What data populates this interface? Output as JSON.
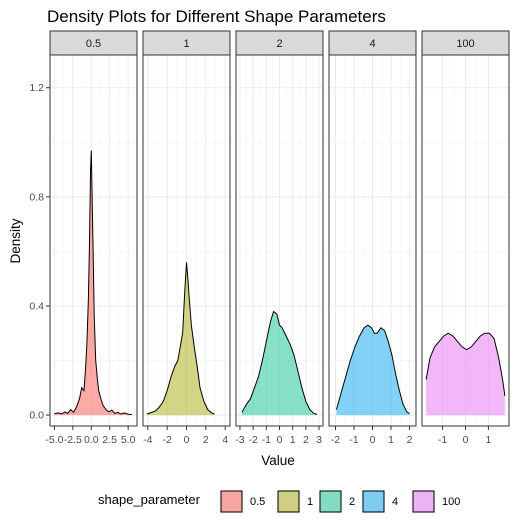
{
  "chart_data": {
    "type": "area",
    "title": "Density Plots for Different Shape Parameters",
    "xlabel": "Value",
    "ylabel": "Density",
    "ylim": [
      -0.04,
      1.32
    ],
    "yticks": [
      0.0,
      0.4,
      0.8,
      1.2
    ],
    "ytick_labels": [
      "0.0",
      "0.4",
      "0.8",
      "1.2"
    ],
    "grid": true,
    "legend": {
      "title": "shape_parameter",
      "position": "bottom"
    },
    "panels": [
      {
        "label": "0.5",
        "color": "#F8766D",
        "xlim": [
          -5.6,
          6.2
        ],
        "xticks": [
          -5.0,
          -2.5,
          0.0,
          2.5,
          5.0
        ],
        "xtick_labels": [
          "-5.0",
          "-2.5",
          "0.0",
          "2.5",
          "5.0"
        ],
        "x": [
          -5.0,
          -4.5,
          -4.0,
          -3.6,
          -3.2,
          -2.8,
          -2.4,
          -2.0,
          -1.6,
          -1.3,
          -1.0,
          -0.8,
          -0.6,
          -0.4,
          -0.25,
          -0.1,
          0.0,
          0.1,
          0.25,
          0.4,
          0.6,
          0.8,
          1.0,
          1.3,
          1.6,
          2.0,
          2.4,
          2.8,
          3.2,
          3.6,
          4.0,
          4.5,
          5.0,
          5.5
        ],
        "y": [
          0.005,
          0.008,
          0.004,
          0.012,
          0.006,
          0.02,
          0.01,
          0.03,
          0.06,
          0.1,
          0.09,
          0.16,
          0.26,
          0.42,
          0.62,
          0.9,
          0.97,
          0.82,
          0.6,
          0.36,
          0.2,
          0.14,
          0.09,
          0.06,
          0.035,
          0.02,
          0.012,
          0.018,
          0.006,
          0.01,
          0.004,
          0.008,
          0.003,
          0.002
        ]
      },
      {
        "label": "1",
        "color": "#B9BA3C",
        "xlim": [
          -4.5,
          4.5
        ],
        "xticks": [
          -4,
          -2,
          0,
          2,
          4
        ],
        "xtick_labels": [
          "-4",
          "-2",
          "0",
          "2",
          "4"
        ],
        "x": [
          -4.1,
          -3.6,
          -3.2,
          -2.8,
          -2.4,
          -2.0,
          -1.6,
          -1.2,
          -0.9,
          -0.6,
          -0.4,
          -0.2,
          -0.1,
          0.0,
          0.1,
          0.3,
          0.5,
          0.8,
          1.1,
          1.4,
          1.8,
          2.2,
          2.6,
          2.9
        ],
        "y": [
          0.004,
          0.01,
          0.015,
          0.03,
          0.05,
          0.09,
          0.14,
          0.18,
          0.2,
          0.26,
          0.3,
          0.44,
          0.5,
          0.56,
          0.52,
          0.42,
          0.33,
          0.25,
          0.18,
          0.1,
          0.05,
          0.02,
          0.008,
          0.004
        ]
      },
      {
        "label": "2",
        "color": "#3CCFA6",
        "xlim": [
          -3.3,
          3.3
        ],
        "xticks": [
          -3,
          -2,
          -1,
          0,
          1,
          2,
          3
        ],
        "xtick_labels": [
          "-3",
          "-2",
          "-1",
          "0",
          "1",
          "2",
          "3"
        ],
        "x": [
          -2.85,
          -2.5,
          -2.2,
          -1.9,
          -1.6,
          -1.3,
          -1.0,
          -0.7,
          -0.45,
          -0.2,
          0.0,
          0.2,
          0.5,
          0.8,
          1.1,
          1.4,
          1.7,
          2.0,
          2.3,
          2.6,
          2.85
        ],
        "y": [
          0.01,
          0.04,
          0.06,
          0.1,
          0.14,
          0.2,
          0.27,
          0.34,
          0.38,
          0.37,
          0.33,
          0.32,
          0.29,
          0.26,
          0.22,
          0.16,
          0.1,
          0.05,
          0.02,
          0.006,
          0.003
        ]
      },
      {
        "label": "4",
        "color": "#35B7F4",
        "xlim": [
          -2.35,
          2.35
        ],
        "xticks": [
          -2,
          -1,
          0,
          1,
          2
        ],
        "xtick_labels": [
          "-2",
          "-1",
          "0",
          "1",
          "2"
        ],
        "x": [
          -1.95,
          -1.7,
          -1.45,
          -1.2,
          -0.95,
          -0.7,
          -0.45,
          -0.25,
          -0.05,
          0.1,
          0.25,
          0.45,
          0.65,
          0.85,
          1.05,
          1.25,
          1.45,
          1.65,
          1.85,
          2.0
        ],
        "y": [
          0.02,
          0.08,
          0.14,
          0.2,
          0.25,
          0.29,
          0.32,
          0.33,
          0.32,
          0.3,
          0.3,
          0.32,
          0.31,
          0.27,
          0.22,
          0.15,
          0.09,
          0.04,
          0.012,
          0.005
        ]
      },
      {
        "label": "100",
        "color": "#E98AF5",
        "xlim": [
          -1.9,
          1.9
        ],
        "xticks": [
          -1,
          0,
          1
        ],
        "xtick_labels": [
          "-1",
          "0",
          "1"
        ],
        "x": [
          -1.72,
          -1.55,
          -1.35,
          -1.15,
          -0.95,
          -0.75,
          -0.55,
          -0.35,
          -0.15,
          0.05,
          0.25,
          0.45,
          0.65,
          0.85,
          1.05,
          1.25,
          1.45,
          1.62,
          1.72
        ],
        "y": [
          0.13,
          0.21,
          0.25,
          0.27,
          0.29,
          0.3,
          0.29,
          0.27,
          0.25,
          0.24,
          0.25,
          0.27,
          0.29,
          0.3,
          0.3,
          0.28,
          0.21,
          0.13,
          0.07
        ]
      }
    ]
  }
}
